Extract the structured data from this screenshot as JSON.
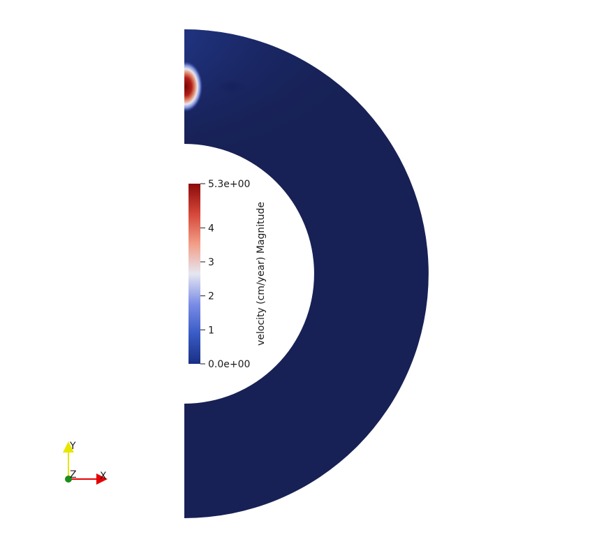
{
  "colorbar": {
    "title": "velocity (cm/year) Magnitude",
    "max_label": "5.3e+00",
    "min_label": "0.0e+00",
    "range": [
      0,
      5.3
    ],
    "tick_labels": [
      "4",
      "3",
      "2",
      "1"
    ],
    "tick_values": [
      4,
      3,
      2,
      1
    ],
    "colormap": [
      "#192f84",
      "#3a5cc6",
      "#7a8ce6",
      "#e6e6f2",
      "#f2a08a",
      "#d6483a",
      "#8b0a0a"
    ]
  },
  "shell": {
    "background_color": "#172155",
    "hotspot_color": "#8b0a0a"
  },
  "orientation_axes": {
    "y_label": "Y",
    "x_label": "X",
    "z_label": "Z",
    "y_color": "#e6e600",
    "x_color": "#e60000",
    "z_color": "#1a8c1a"
  }
}
